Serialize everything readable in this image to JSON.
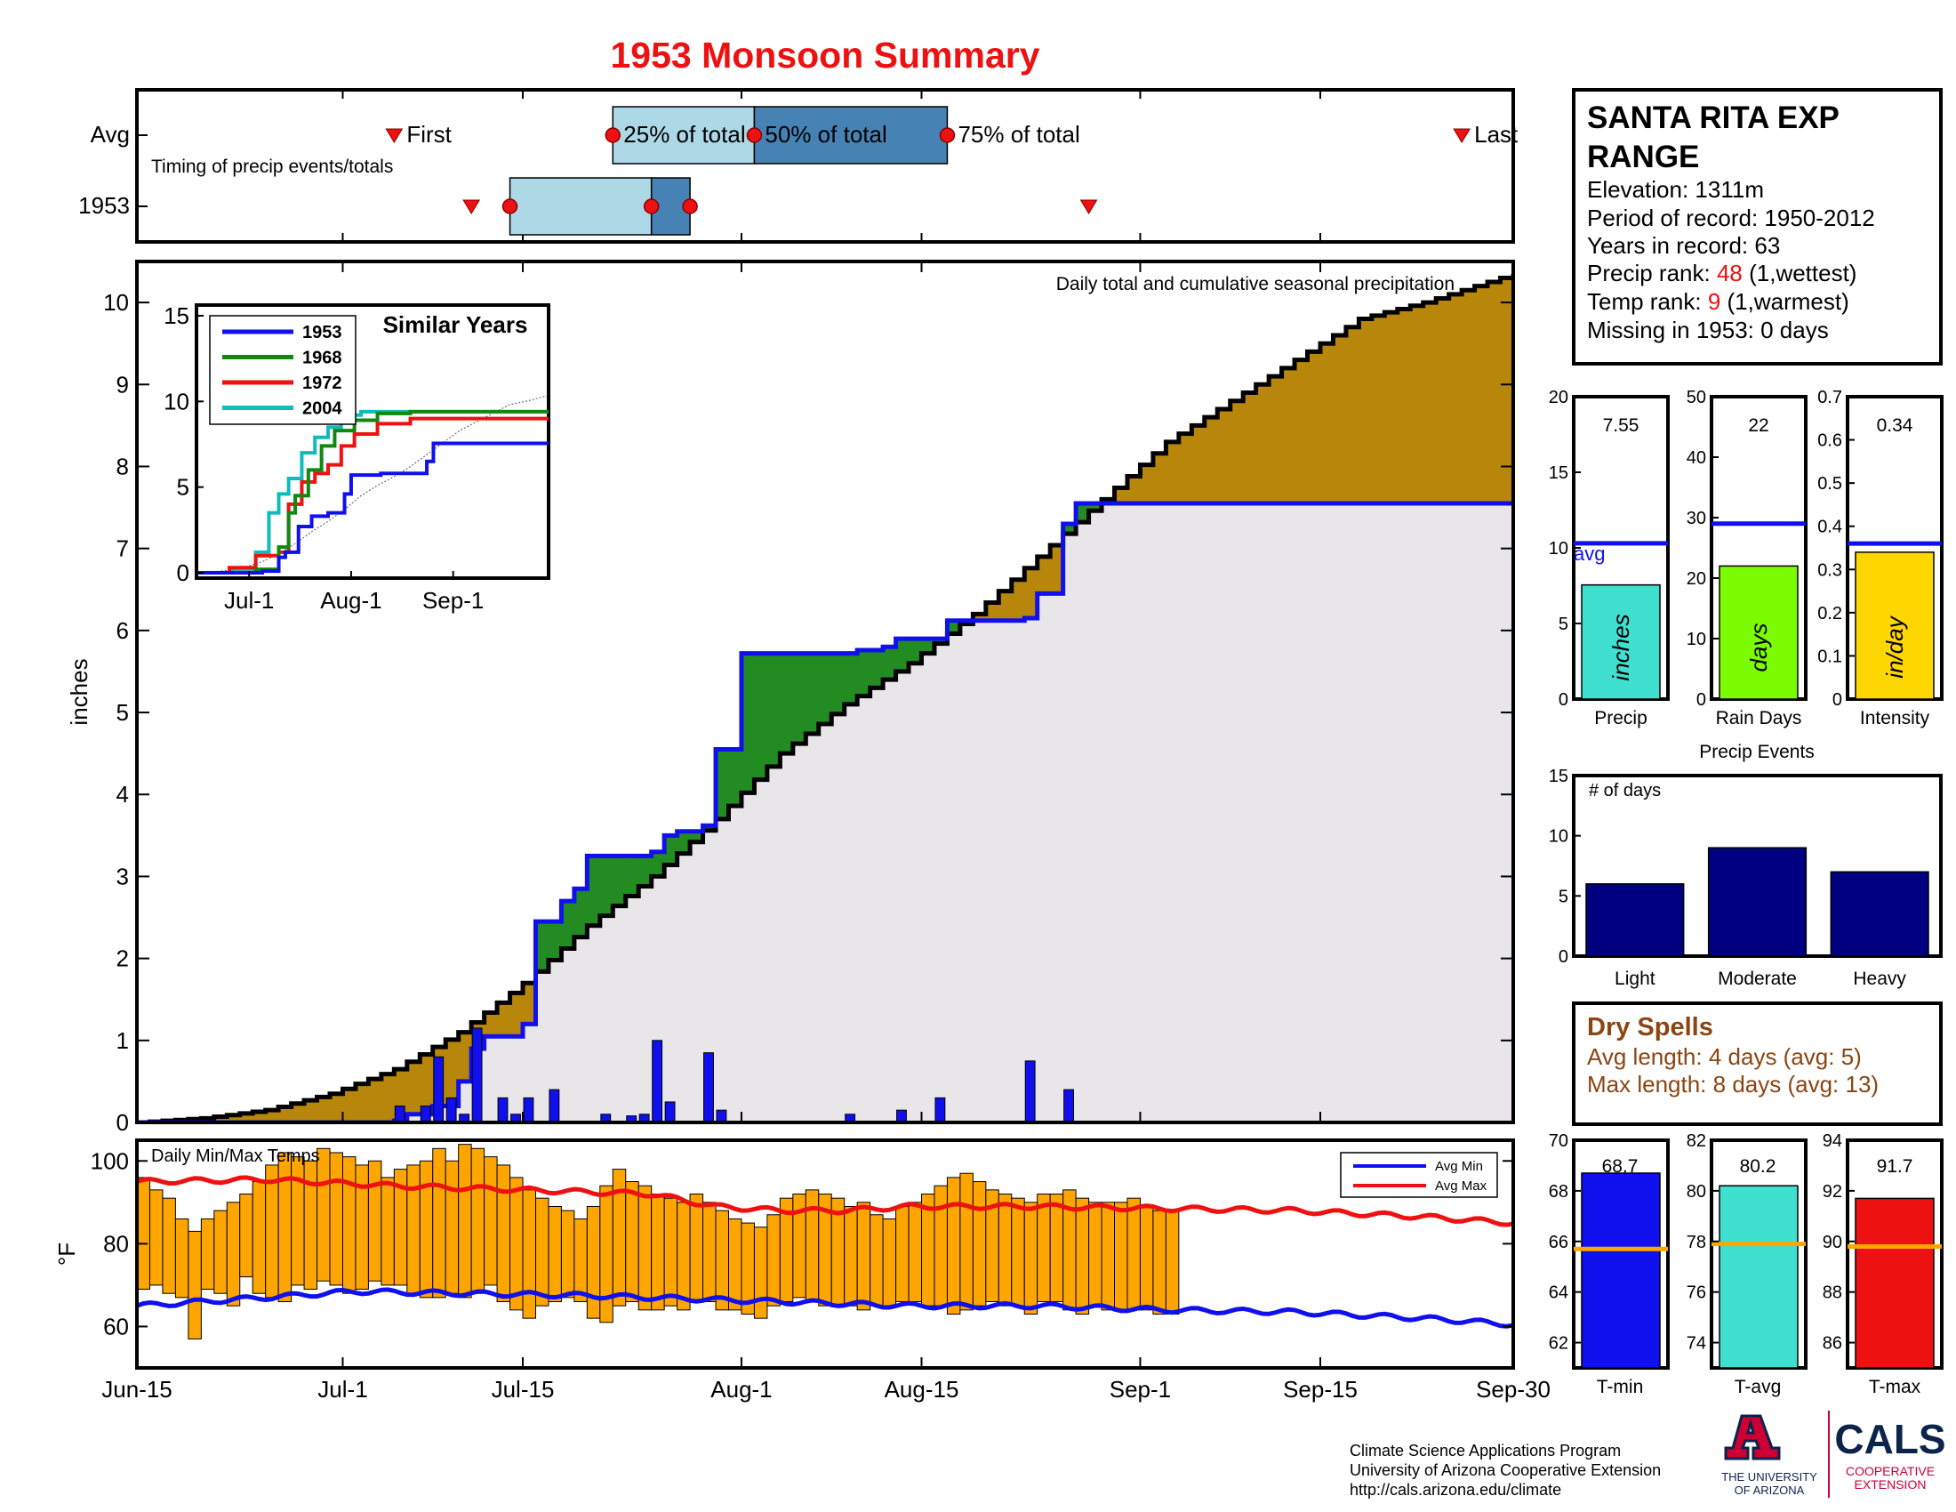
{
  "title": "1953 Monsoon Summary",
  "station": {
    "name_line1": "SANTA RITA EXP",
    "name_line2": "RANGE",
    "elevation": "Elevation: 1311m",
    "period": "Period of record: 1950-2012",
    "years": "Years in record: 63",
    "precip_rank_label": "Precip rank: ",
    "precip_rank_value": "48",
    "precip_rank_note": " (1,wettest)",
    "temp_rank_label": "Temp rank: ",
    "temp_rank_value": "9",
    "temp_rank_note": " (1,warmest)",
    "missing": "Missing in 1953: 0 days"
  },
  "timing": {
    "row_avg": "Avg",
    "row_year": "1953",
    "subtitle": "Timing of precip events/totals",
    "first": "First",
    "last": "Last",
    "p25": "25% of total",
    "p50": "50% of total",
    "p75": "75% of total",
    "avg_points": {
      "first": 20,
      "p25": 37,
      "p50": 48,
      "p75": 63,
      "last": 103
    },
    "year_points": {
      "first": 26,
      "p25": 29,
      "p50": 40,
      "p75": 43,
      "last": 74
    },
    "colors": {
      "light": "#add8e6",
      "dark": "#4682b4",
      "marker": "#ee1111"
    }
  },
  "main_chart": {
    "annotation": "Daily total and cumulative seasonal precipitation",
    "ylabel": "inches",
    "y_ticks": [
      "0",
      "1",
      "2",
      "3",
      "4",
      "5",
      "6",
      "7",
      "8",
      "9",
      "10"
    ],
    "x_ticks": [
      "Jun-15",
      "Jul-1",
      "Jul-15",
      "Aug-1",
      "Aug-15",
      "Sep-1",
      "Sep-15",
      "Sep-30"
    ]
  },
  "inset": {
    "title": "Similar Years",
    "y_ticks": [
      "0",
      "5",
      "10",
      "15"
    ],
    "x_ticks": [
      "Jul-1",
      "Aug-1",
      "Sep-1"
    ],
    "legend": [
      {
        "name": "1953",
        "color": "#1010ee"
      },
      {
        "name": "1968",
        "color": "#118811"
      },
      {
        "name": "1972",
        "color": "#ee1111"
      },
      {
        "name": "2004",
        "color": "#11bbbb"
      }
    ]
  },
  "temp_chart": {
    "title": "Daily Min/Max Temps",
    "ylabel": "°F",
    "y_ticks": [
      "60",
      "80",
      "100"
    ],
    "legend_min": "Avg Min",
    "legend_max": "Avg Max"
  },
  "bars_summary": {
    "precip": {
      "value_label": "7.55",
      "unit": "inches",
      "label": "Precip",
      "ticks": [
        "0",
        "5",
        "10",
        "15",
        "20"
      ],
      "avg_label": "avg"
    },
    "raindays": {
      "value_label": "22",
      "unit": "days",
      "label": "Rain Days",
      "ticks": [
        "0",
        "10",
        "20",
        "30",
        "40",
        "50"
      ]
    },
    "intensity": {
      "value_label": "0.34",
      "unit": "in/day",
      "label": "Intensity",
      "ticks": [
        "0",
        "0.1",
        "0.2",
        "0.3",
        "0.4",
        "0.5",
        "0.6",
        "0.7"
      ]
    }
  },
  "events": {
    "title": "Precip Events",
    "ylabel": "# of days",
    "ticks": [
      "0",
      "5",
      "10",
      "15"
    ],
    "categories": [
      "Light",
      "Moderate",
      "Heavy"
    ]
  },
  "dry_spells": {
    "title": "Dry Spells",
    "avg": "Avg length: 4 days (avg: 5)",
    "max": "Max length: 8 days (avg: 13)"
  },
  "temps_summary": {
    "tmin": {
      "value_label": "68.7",
      "label": "T-min",
      "ticks": [
        "62",
        "64",
        "66",
        "68",
        "70"
      ]
    },
    "tavg": {
      "value_label": "80.2",
      "label": "T-avg",
      "ticks": [
        "74",
        "76",
        "78",
        "80",
        "82"
      ]
    },
    "tmax": {
      "value_label": "91.7",
      "label": "T-max",
      "ticks": [
        "86",
        "88",
        "90",
        "92",
        "94"
      ]
    }
  },
  "footer": {
    "line1": "Climate Science Applications Program",
    "line2": "University of Arizona Cooperative Extension",
    "line3": "http://cals.arizona.edu/climate",
    "logo_ua_line1": "THE UNIVERSITY",
    "logo_ua_line2": "OF ARIZONA",
    "logo_cals": "CALS",
    "logo_cals_sub1": "COOPERATIVE",
    "logo_cals_sub2": "EXTENSION"
  },
  "chart_data": [
    {
      "type": "area",
      "name": "cumulative precipitation",
      "x_unit": "day since Jun-15",
      "x_range": [
        0,
        107
      ],
      "ylim": [
        0,
        10.5
      ],
      "avg_cumulative": {
        "x": [
          0,
          5,
          10,
          15,
          20,
          25,
          30,
          35,
          40,
          45,
          50,
          55,
          60,
          65,
          70,
          75,
          80,
          85,
          90,
          95,
          100,
          107
        ],
        "y": [
          0,
          0.05,
          0.15,
          0.35,
          0.65,
          1.1,
          1.7,
          2.4,
          3.0,
          3.7,
          4.5,
          5.1,
          5.6,
          6.2,
          6.9,
          7.6,
          8.3,
          8.8,
          9.3,
          9.8,
          10.0,
          10.35
        ]
      },
      "year_cumulative": {
        "x": [
          0,
          20,
          21,
          23,
          25,
          26,
          27,
          30,
          31,
          33,
          34,
          35,
          40,
          41,
          42,
          44,
          45,
          47,
          56,
          58,
          59,
          63,
          69,
          70,
          72,
          73,
          107
        ],
        "y": [
          0,
          0.02,
          0.1,
          0.2,
          0.5,
          0.9,
          1.05,
          1.2,
          2.45,
          2.7,
          2.85,
          3.25,
          3.3,
          3.5,
          3.55,
          3.62,
          4.55,
          5.72,
          5.76,
          5.8,
          5.9,
          6.12,
          6.15,
          6.45,
          7.3,
          7.55,
          7.55
        ]
      },
      "daily_precip": {
        "x": [
          20,
          22,
          23,
          24,
          25,
          26,
          28,
          29,
          30,
          32,
          36,
          38,
          39,
          40,
          41,
          44,
          45,
          55,
          59,
          62,
          69,
          72
        ],
        "y": [
          0.2,
          0.2,
          0.8,
          0.3,
          0.1,
          1.15,
          0.3,
          0.1,
          0.3,
          0.4,
          0.1,
          0.08,
          0.1,
          1.0,
          0.25,
          0.85,
          0.15,
          0.1,
          0.15,
          0.3,
          0.75,
          0.4
        ]
      },
      "colors": {
        "above_avg": "#228b22",
        "below_avg": "#b8860b",
        "base": "#e8e6e8",
        "daily": "#1010ee"
      }
    },
    {
      "type": "line",
      "name": "Similar Years",
      "x_unit": "day since Jun-15",
      "ylim": [
        0,
        15
      ],
      "series": [
        {
          "name": "1953",
          "x": [
            0,
            20,
            25,
            27,
            31,
            35,
            40,
            45,
            47,
            56,
            70,
            72,
            107
          ],
          "y": [
            0,
            0.1,
            0.9,
            1.2,
            2.7,
            3.3,
            3.5,
            4.6,
            5.7,
            5.8,
            6.5,
            7.55,
            7.55
          ]
        },
        {
          "name": "1968",
          "x": [
            0,
            18,
            25,
            28,
            30,
            34,
            38,
            42,
            48,
            55,
            65,
            70,
            107
          ],
          "y": [
            0,
            0.2,
            1.5,
            3.5,
            4.5,
            6.0,
            7.4,
            8.3,
            8.9,
            9.3,
            9.4,
            9.4,
            9.4
          ]
        },
        {
          "name": "1972",
          "x": [
            0,
            10,
            18,
            25,
            28,
            32,
            36,
            40,
            44,
            48,
            55,
            65,
            107
          ],
          "y": [
            0,
            0.3,
            1.0,
            1.2,
            4.0,
            5.3,
            5.8,
            6.3,
            7.4,
            8.1,
            8.7,
            9.0,
            9.0
          ]
        },
        {
          "name": "2004",
          "x": [
            0,
            10,
            18,
            22,
            25,
            28,
            32,
            36,
            40,
            44,
            50,
            60,
            107
          ],
          "y": [
            0,
            0.1,
            1.2,
            3.5,
            4.6,
            5.5,
            7.0,
            7.9,
            8.5,
            9.2,
            9.4,
            9.4,
            9.4
          ]
        }
      ]
    },
    {
      "type": "bar",
      "name": "Daily Min/Max Temps",
      "x_unit": "day since Jun-15",
      "ylim": [
        50,
        105
      ],
      "daily_max": [
        96,
        93,
        91,
        86,
        83,
        86,
        88,
        90,
        92,
        95,
        99,
        102,
        101,
        100,
        103,
        102,
        101,
        99,
        100,
        96,
        98,
        99,
        100,
        103,
        100,
        104,
        103,
        101,
        99,
        96,
        93,
        91,
        89,
        88,
        86,
        89,
        94,
        98,
        95,
        94,
        92,
        91,
        90,
        92,
        90,
        88,
        86,
        85,
        84,
        87,
        91,
        92,
        93,
        92,
        91,
        89,
        90,
        87,
        86,
        89,
        90,
        92,
        94,
        96,
        97,
        95,
        93,
        92,
        91,
        90,
        92,
        92,
        93,
        91,
        90,
        90,
        90,
        91,
        89,
        88,
        88
      ],
      "daily_min": [
        69,
        70,
        68,
        67,
        57,
        69,
        68,
        65,
        72,
        68,
        67,
        66,
        70,
        69,
        71,
        70,
        68,
        69,
        71,
        70,
        70,
        68,
        67,
        67,
        68,
        67,
        68,
        70,
        66,
        64,
        62,
        65,
        66,
        67,
        66,
        62,
        61,
        65,
        66,
        64,
        64,
        65,
        64,
        66,
        66,
        64,
        64,
        63,
        62,
        65,
        66,
        67,
        66,
        65,
        65,
        65,
        64,
        65,
        65,
        66,
        66,
        65,
        65,
        63,
        64,
        65,
        66,
        65,
        65,
        63,
        66,
        66,
        64,
        63,
        65,
        64,
        64,
        64,
        64,
        63,
        63
      ],
      "avg_max": {
        "x": [
          0,
          10,
          20,
          30,
          40,
          45,
          50,
          55,
          60,
          70,
          80,
          90,
          100,
          107
        ],
        "y": [
          95,
          95.5,
          94,
          93,
          92,
          89,
          88,
          88,
          89,
          89,
          88.5,
          88,
          86.5,
          85
        ]
      },
      "avg_min": {
        "x": [
          0,
          10,
          17,
          25,
          35,
          45,
          50,
          55,
          60,
          70,
          75,
          80,
          90,
          100,
          107
        ],
        "y": [
          65,
          67,
          68.5,
          68,
          67.5,
          66.5,
          66,
          65.5,
          65,
          65,
          64.5,
          64,
          63.5,
          62,
          60.5
        ]
      },
      "colors": {
        "bars": "#ffa500",
        "avg_max": "#ee1111",
        "avg_min": "#1010ee"
      }
    },
    {
      "type": "bar",
      "name": "Precip",
      "values": [
        7.55
      ],
      "avg": 10.3,
      "ylim": [
        0,
        20
      ],
      "color": "#40e0d0"
    },
    {
      "type": "bar",
      "name": "Rain Days",
      "values": [
        22
      ],
      "avg": 29,
      "ylim": [
        0,
        50
      ],
      "color": "#7cfc00"
    },
    {
      "type": "bar",
      "name": "Intensity",
      "values": [
        0.34
      ],
      "avg": 0.36,
      "ylim": [
        0,
        0.7
      ],
      "color": "#ffd700"
    },
    {
      "type": "bar",
      "name": "Precip Events",
      "categories": [
        "Light",
        "Moderate",
        "Heavy"
      ],
      "values": [
        6,
        9,
        7
      ],
      "ylim": [
        0,
        15
      ],
      "color": "#000080"
    },
    {
      "type": "bar",
      "name": "T-min",
      "values": [
        68.7
      ],
      "avg": 65.7,
      "ylim": [
        61,
        70
      ],
      "color": "#1010ee"
    },
    {
      "type": "bar",
      "name": "T-avg",
      "values": [
        80.2
      ],
      "avg": 77.9,
      "ylim": [
        73,
        82
      ],
      "color": "#40e0d0"
    },
    {
      "type": "bar",
      "name": "T-max",
      "values": [
        91.7
      ],
      "avg": 89.8,
      "ylim": [
        85,
        94
      ],
      "color": "#ee1111"
    }
  ]
}
